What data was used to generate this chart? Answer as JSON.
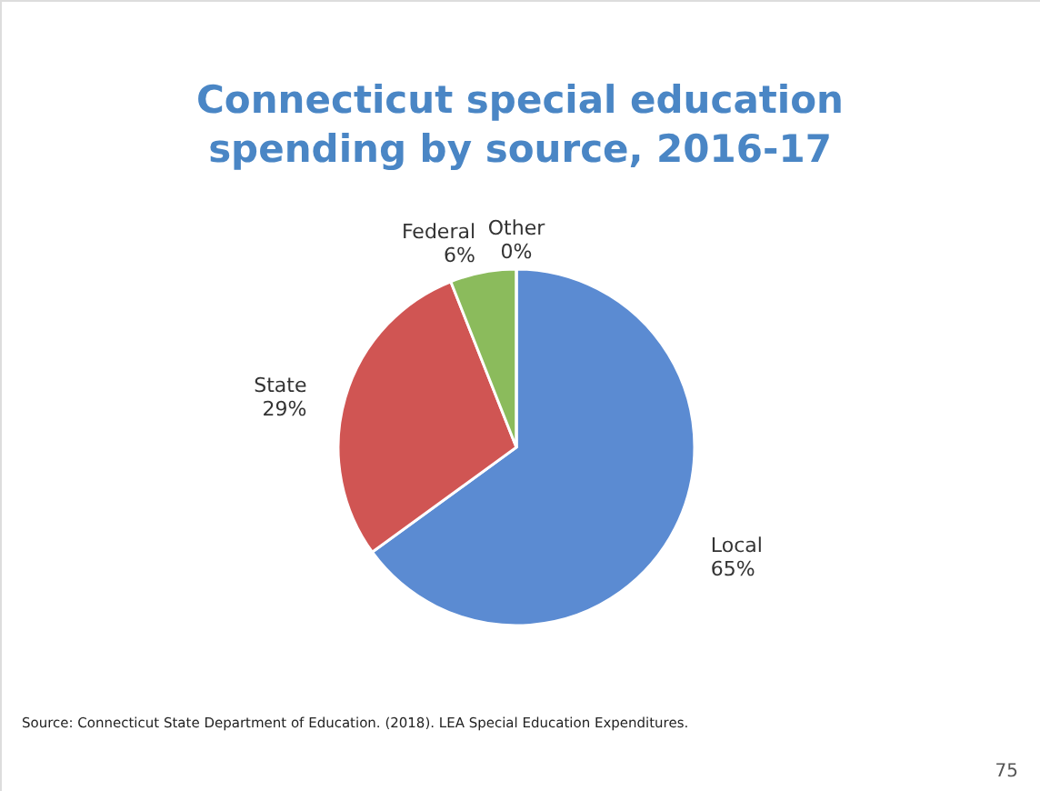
{
  "chart_data": {
    "type": "pie",
    "title": "Connecticut special education spending by source, 2016-17",
    "categories": [
      "Local",
      "State",
      "Federal",
      "Other"
    ],
    "values": [
      65,
      29,
      6,
      0
    ],
    "value_labels": [
      "65%",
      "29%",
      "6%",
      "0%"
    ],
    "colors": [
      "#5b8bd2",
      "#d05553",
      "#8bbb5c",
      "#7f63a8"
    ],
    "annotations": [
      "Source: Connecticut State Department of Education. (2018). LEA Special Education Expenditures.",
      "75"
    ]
  }
}
